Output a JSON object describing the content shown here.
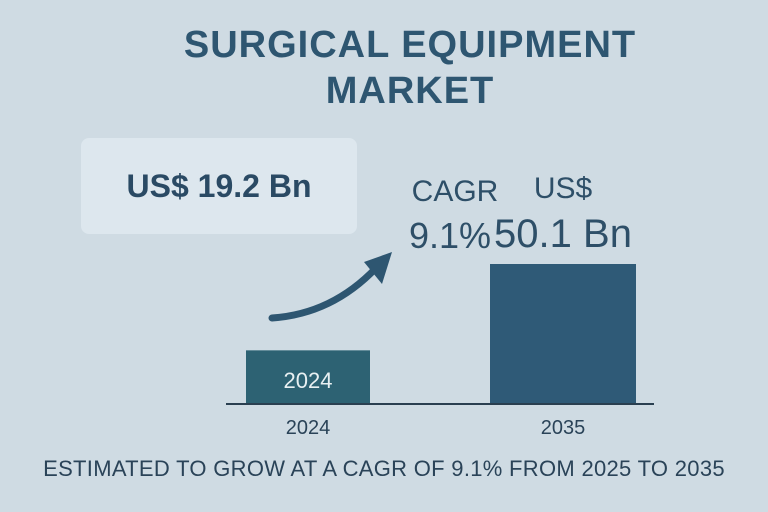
{
  "title_line1": "SURGICAL EQUIPMENT",
  "title_line2": "MARKET",
  "value_box_text": "US$ 19.2 Bn",
  "cagr_label": "CAGR",
  "cagr_value": "9.1%",
  "bar_2035_label_line1": "US$",
  "bar_2035_label_line2": "50.1 Bn",
  "footer": "ESTIMATED TO GROW AT A CAGR OF 9.1% FROM 2025 TO 2035",
  "colors": {
    "background": "#cfdbe3",
    "bar_2024": "#2d6273",
    "bar_2035": "#2f5a77",
    "arrow": "#2e5671"
  },
  "chart_data": {
    "type": "bar",
    "categories": [
      "2024",
      "2035"
    ],
    "values": [
      19.2,
      50.1
    ],
    "bar_inner_labels": [
      "2024",
      ""
    ],
    "title": "SURGICAL EQUIPMENT MARKET",
    "xlabel": "",
    "ylabel": "",
    "unit": "US$ Bn",
    "grid": false,
    "legend": "none"
  }
}
